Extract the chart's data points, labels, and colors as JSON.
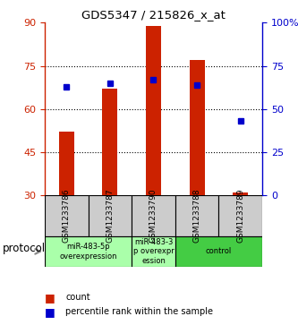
{
  "title": "GDS5347 / 215826_x_at",
  "samples": [
    "GSM1233786",
    "GSM1233787",
    "GSM1233790",
    "GSM1233788",
    "GSM1233789"
  ],
  "count_values": [
    52.0,
    67.0,
    89.0,
    77.0,
    31.0
  ],
  "percentile_values": [
    63.0,
    65.0,
    67.0,
    64.0,
    43.0
  ],
  "ylim_left": [
    30,
    90
  ],
  "ylim_right": [
    0,
    100
  ],
  "yticks_left": [
    30,
    45,
    60,
    75,
    90
  ],
  "yticks_right": [
    0,
    25,
    50,
    75,
    100
  ],
  "ytick_labels_right": [
    "0",
    "25",
    "50",
    "75",
    "100%"
  ],
  "bar_color": "#cc2200",
  "dot_color": "#0000cc",
  "bar_width": 0.35,
  "group_spans": [
    {
      "indices": [
        0,
        1
      ],
      "label": "miR-483-5p\noverexpression",
      "color": "#aaffaa"
    },
    {
      "indices": [
        2
      ],
      "label": "miR-483-3\np overexpr\nession",
      "color": "#aaffaa"
    },
    {
      "indices": [
        3,
        4
      ],
      "label": "control",
      "color": "#44cc44"
    }
  ],
  "protocol_label": "protocol",
  "legend_count_label": "count",
  "legend_percentile_label": "percentile rank within the sample",
  "bg_color": "#ffffff",
  "left_tick_color": "#cc2200",
  "right_tick_color": "#0000cc",
  "sample_box_color": "#cccccc",
  "grid_dotted_at": [
    45,
    60,
    75
  ]
}
